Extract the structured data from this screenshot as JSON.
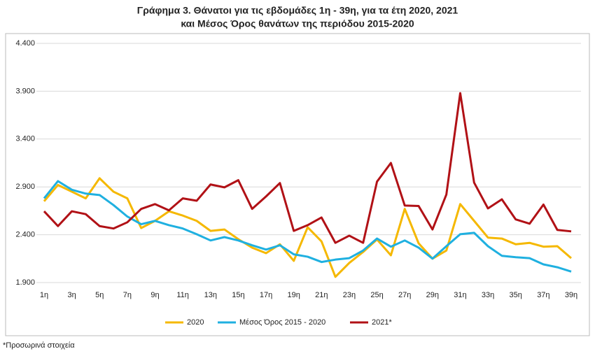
{
  "chart_data": {
    "type": "line",
    "title": [
      "Γράφημα 3. Θάνατοι για τις εβδομάδες 1η - 39η, για τα έτη 2020, 2021",
      "και Μέσος Όρος θανάτων της περιόδου 2015-2020"
    ],
    "footnote": "*Προσωρινά στοιχεία",
    "categories": [
      "1η",
      null,
      "3η",
      null,
      "5η",
      null,
      "7η",
      null,
      "9η",
      null,
      "11η",
      null,
      "13η",
      null,
      "15η",
      null,
      "17η",
      null,
      "19η",
      null,
      "21η",
      null,
      "23η",
      null,
      "25η",
      null,
      "27η",
      null,
      "29η",
      null,
      "31η",
      null,
      "33η",
      null,
      "35η",
      null,
      "37η",
      null,
      "39η"
    ],
    "ylim": [
      1900,
      4400
    ],
    "yticks": [
      {
        "value": 1900,
        "label": "1.900"
      },
      {
        "value": 2400,
        "label": "2.400"
      },
      {
        "value": 2900,
        "label": "2.900"
      },
      {
        "value": 3400,
        "label": "3.400"
      },
      {
        "value": 3900,
        "label": "3.900"
      },
      {
        "value": 4400,
        "label": "4.400"
      }
    ],
    "grid": true,
    "legend": "bottom",
    "series": [
      {
        "name": "2020",
        "color": "#f5b800",
        "values": [
          2750,
          2920,
          2850,
          2780,
          2990,
          2850,
          2780,
          2470,
          2545,
          2645,
          2600,
          2545,
          2440,
          2455,
          2353,
          2265,
          2207,
          2300,
          2127,
          2478,
          2330,
          1960,
          2105,
          2220,
          2350,
          2185,
          2670,
          2310,
          2150,
          2235,
          2720,
          2545,
          2370,
          2360,
          2300,
          2315,
          2275,
          2280,
          2155
        ]
      },
      {
        "name": "Μέσος Όρος 2015 - 2020",
        "color": "#1fb0e0",
        "values": [
          2780,
          2960,
          2870,
          2830,
          2815,
          2710,
          2590,
          2510,
          2545,
          2500,
          2465,
          2405,
          2340,
          2375,
          2340,
          2290,
          2245,
          2290,
          2195,
          2170,
          2115,
          2140,
          2155,
          2235,
          2360,
          2275,
          2340,
          2265,
          2150,
          2280,
          2405,
          2420,
          2280,
          2180,
          2165,
          2155,
          2090,
          2060,
          2015
        ]
      },
      {
        "name": "2021*",
        "color": "#b11116",
        "values": [
          2645,
          2490,
          2645,
          2615,
          2490,
          2465,
          2530,
          2670,
          2720,
          2655,
          2780,
          2755,
          2925,
          2895,
          2970,
          2670,
          2800,
          2940,
          2440,
          2500,
          2580,
          2315,
          2390,
          2315,
          2955,
          3150,
          2705,
          2700,
          2455,
          2820,
          3880,
          2945,
          2675,
          2770,
          2560,
          2515,
          2715,
          2450,
          2435
        ]
      }
    ]
  }
}
